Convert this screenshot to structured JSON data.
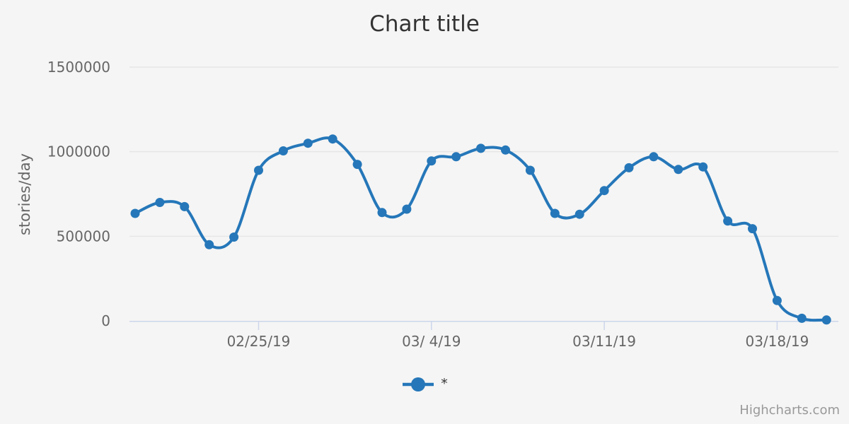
{
  "chart": {
    "title": "Chart title",
    "credits": "Highcharts.com",
    "background_color": "#f5f5f5",
    "legend": {
      "items": [
        {
          "label": "*",
          "marker_color": "#2577b9"
        }
      ]
    },
    "y_axis": {
      "title": "stories/day"
    }
  },
  "chart_data": {
    "type": "line",
    "title": "Chart title",
    "xlabel": "",
    "ylabel": "stories/day",
    "ylim": [
      0,
      1500000
    ],
    "yticks": [
      0,
      500000,
      1000000,
      1500000
    ],
    "ytick_labels": [
      "0",
      "500000",
      "1000000",
      "1500000"
    ],
    "x": [
      "02/20/19",
      "02/21/19",
      "02/22/19",
      "02/23/19",
      "02/24/19",
      "02/25/19",
      "02/26/19",
      "02/27/19",
      "02/28/19",
      "03/01/19",
      "03/02/19",
      "03/03/19",
      "03/04/19",
      "03/05/19",
      "03/06/19",
      "03/07/19",
      "03/08/19",
      "03/09/19",
      "03/10/19",
      "03/11/19",
      "03/12/19",
      "03/13/19",
      "03/14/19",
      "03/15/19",
      "03/16/19",
      "03/17/19",
      "03/18/19",
      "03/19/19",
      "03/20/19"
    ],
    "values": [
      635000,
      700000,
      675000,
      450000,
      495000,
      890000,
      1005000,
      1050000,
      1075000,
      925000,
      640000,
      660000,
      945000,
      970000,
      1020000,
      1010000,
      890000,
      635000,
      630000,
      770000,
      905000,
      970000,
      895000,
      910000,
      590000,
      545000,
      120000,
      15000,
      5000
    ],
    "xtick_labels": [
      "02/25/19",
      "03/ 4/19",
      "03/11/19",
      "03/18/19"
    ],
    "xtick_indices": [
      5,
      12,
      19,
      26
    ],
    "legend_entries": [
      "*"
    ],
    "legend_position": "bottom",
    "grid": "horizontal",
    "smooth": true,
    "series_color": "#2577b9",
    "axis_line_color": "#ccd6eb",
    "grid_color": "#e6e6e6",
    "label_color": "#666666"
  }
}
